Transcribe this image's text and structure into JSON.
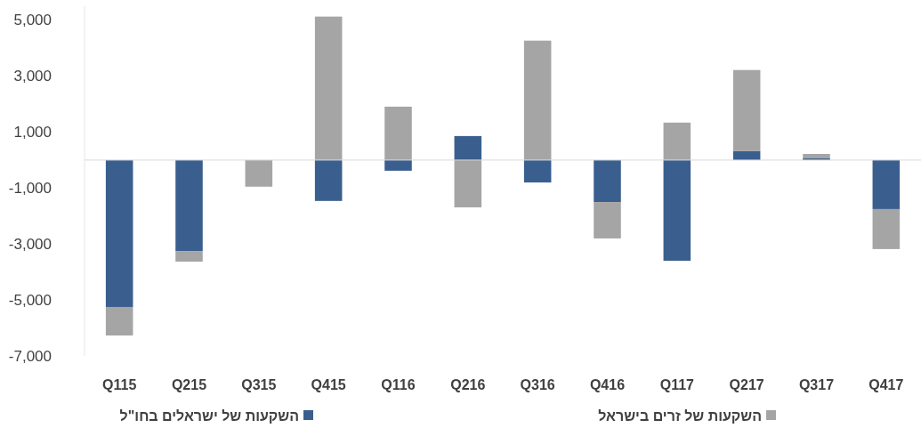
{
  "chart_data": {
    "type": "bar",
    "stacked": true,
    "categories": [
      "Q115",
      "Q215",
      "Q315",
      "Q415",
      "Q116",
      "Q216",
      "Q316",
      "Q416",
      "Q117",
      "Q217",
      "Q317",
      "Q417"
    ],
    "series": [
      {
        "name": "השקעות של ישראלים בחו\"ל",
        "color": "#3a5f8f",
        "values": [
          -5250,
          -3250,
          0,
          -1460,
          -380,
          860,
          -800,
          -1500,
          -3600,
          320,
          60,
          -1750
        ]
      },
      {
        "name": "השקעות של זרים בישראל",
        "color": "#a5a5a5",
        "values": [
          -1020,
          -380,
          -950,
          5130,
          1910,
          -1690,
          4270,
          -1300,
          1340,
          2900,
          160,
          -1430
        ]
      }
    ],
    "ylim": [
      -7000,
      5500
    ],
    "yticks": [
      {
        "value": -7000,
        "label": "-7,000"
      },
      {
        "value": -5000,
        "label": "-5,000"
      },
      {
        "value": -3000,
        "label": "-3,000"
      },
      {
        "value": -1000,
        "label": "-1,000"
      },
      {
        "value": 1000,
        "label": "1,000"
      },
      {
        "value": 3000,
        "label": "3,000"
      },
      {
        "value": 5000,
        "label": "5,000"
      }
    ],
    "grid": false,
    "legend": "bottom"
  }
}
